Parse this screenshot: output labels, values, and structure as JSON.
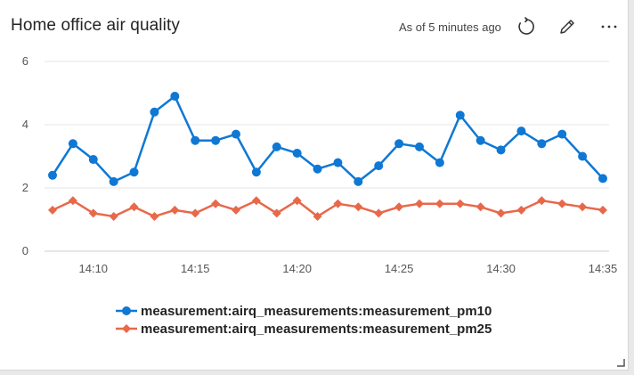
{
  "card": {
    "title": "Home office air quality",
    "as_of": "As of 5 minutes ago",
    "icons": [
      "refresh-icon",
      "edit-pencil-icon",
      "more-ellipsis-icon",
      "resize-handle-icon"
    ]
  },
  "colors": {
    "pm10": "#0f78d4",
    "pm25": "#e8684a",
    "grid": "#e6e6e6",
    "axis_text": "#555555"
  },
  "chart_data": {
    "type": "line",
    "x": [
      "14:08",
      "14:09",
      "14:10",
      "14:11",
      "14:12",
      "14:13",
      "14:14",
      "14:15",
      "14:16",
      "14:17",
      "14:18",
      "14:19",
      "14:20",
      "14:21",
      "14:22",
      "14:23",
      "14:24",
      "14:25",
      "14:26",
      "14:27",
      "14:28",
      "14:29",
      "14:30",
      "14:31",
      "14:32",
      "14:33",
      "14:34",
      "14:35"
    ],
    "x_ticks": [
      "14:10",
      "14:15",
      "14:20",
      "14:25",
      "14:30",
      "14:35"
    ],
    "ylim": [
      0,
      6
    ],
    "y_ticks": [
      0,
      2,
      4,
      6
    ],
    "grid": true,
    "legend": "bottom",
    "series": [
      {
        "name": "measurement:airq_measurements:measurement_pm10",
        "marker": "circle",
        "values": [
          2.4,
          3.4,
          2.9,
          2.2,
          2.5,
          4.4,
          4.9,
          3.5,
          3.5,
          3.7,
          2.5,
          3.3,
          3.1,
          2.6,
          2.8,
          2.2,
          2.7,
          3.4,
          3.3,
          2.8,
          4.3,
          3.5,
          3.2,
          3.8,
          3.4,
          3.7,
          3.0,
          2.3
        ]
      },
      {
        "name": "measurement:airq_measurements:measurement_pm25",
        "marker": "diamond",
        "values": [
          1.3,
          1.6,
          1.2,
          1.1,
          1.4,
          1.1,
          1.3,
          1.2,
          1.5,
          1.3,
          1.6,
          1.2,
          1.6,
          1.1,
          1.5,
          1.4,
          1.2,
          1.4,
          1.5,
          1.5,
          1.5,
          1.4,
          1.2,
          1.3,
          1.6,
          1.5,
          1.4,
          1.3
        ]
      }
    ]
  }
}
